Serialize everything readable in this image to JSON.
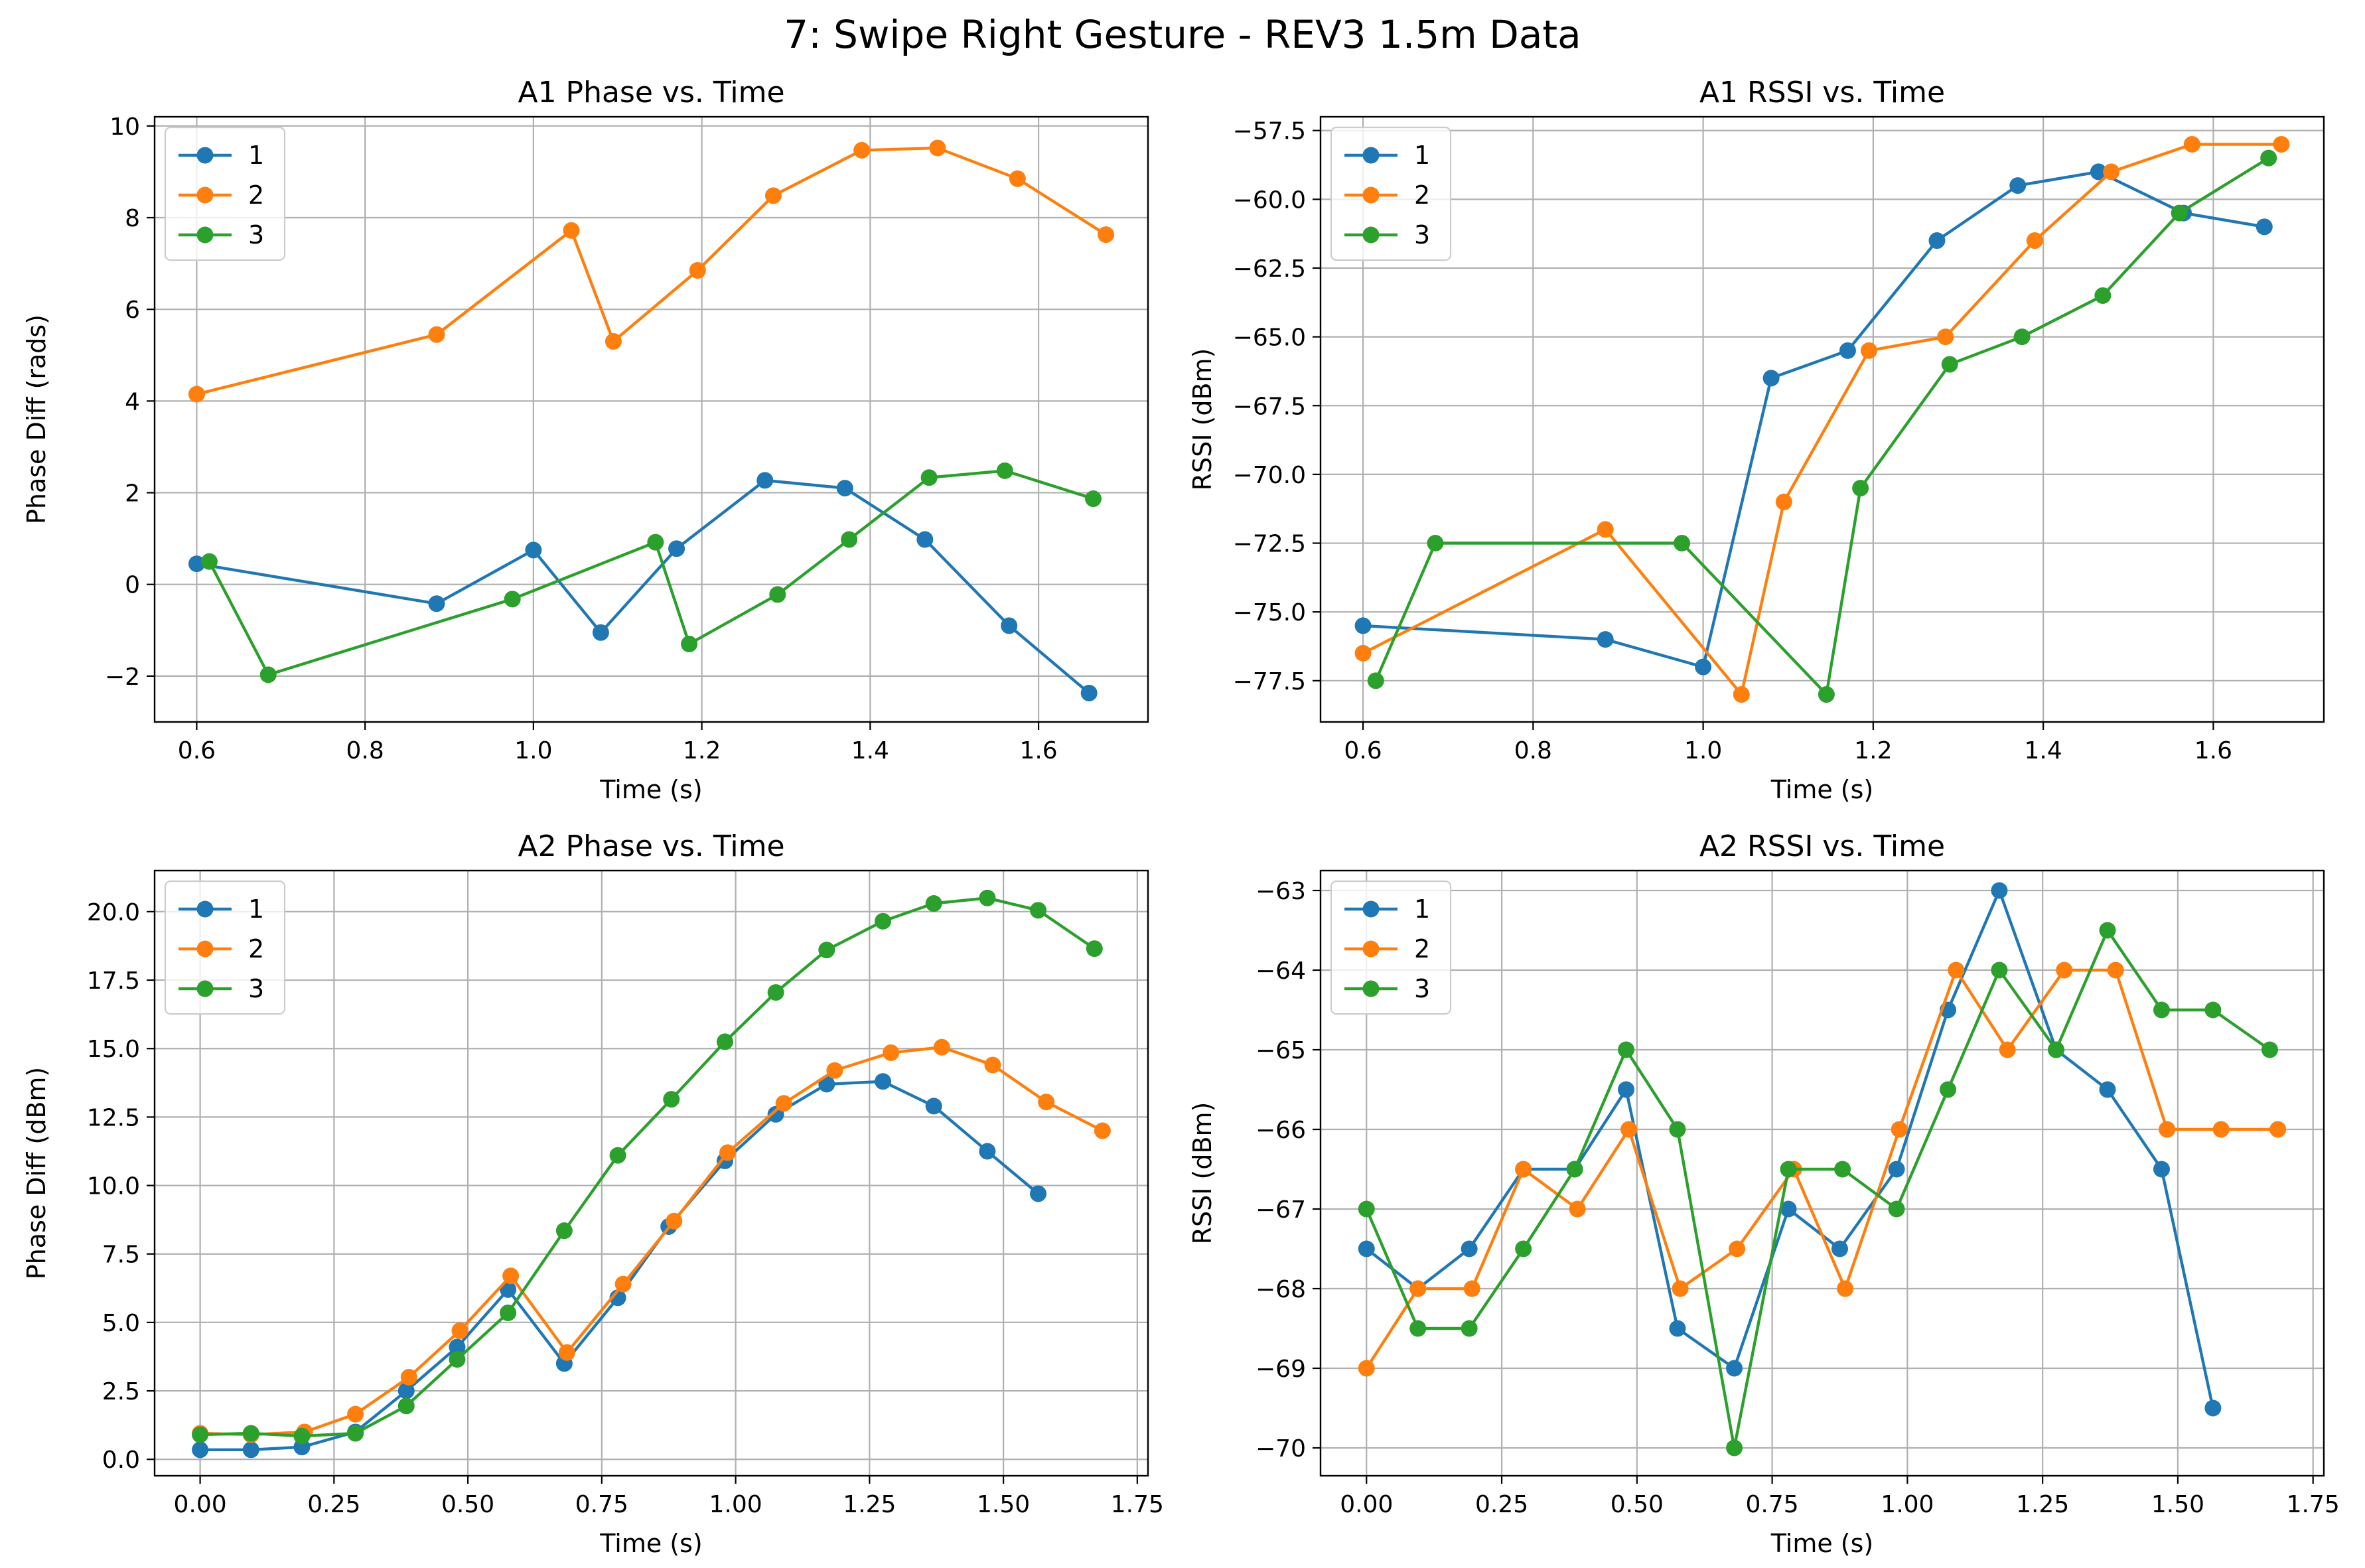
{
  "figure": {
    "title": "7: Swipe Right Gesture - REV3 1.5m Data"
  },
  "colors": {
    "1": "#1f77b4",
    "2": "#ff7f0e",
    "3": "#2ca02c"
  },
  "chart_data": [
    {
      "type": "line",
      "title": "A1 Phase vs. Time",
      "xlabel": "Time (s)",
      "ylabel": "Phase Diff (rads)",
      "xlim": [
        0.55,
        1.73
      ],
      "ylim": [
        -3.0,
        10.2
      ],
      "xticks": [
        0.6,
        0.8,
        1.0,
        1.2,
        1.4,
        1.6
      ],
      "xtick_labels": [
        "0.6",
        "0.8",
        "1.0",
        "1.2",
        "1.4",
        "1.6"
      ],
      "yticks": [
        -2,
        0,
        2,
        4,
        6,
        8,
        10
      ],
      "ytick_labels": [
        "−2",
        "0",
        "2",
        "4",
        "6",
        "8",
        "10"
      ],
      "grid": true,
      "legend": "top-left",
      "series": [
        {
          "name": "1",
          "x": [
            0.6,
            0.885,
            1.0,
            1.08,
            1.17,
            1.275,
            1.37,
            1.465,
            1.565,
            1.66
          ],
          "y": [
            0.45,
            -0.42,
            0.75,
            -1.05,
            0.78,
            2.27,
            2.1,
            0.98,
            -0.9,
            -2.37
          ]
        },
        {
          "name": "2",
          "x": [
            0.6,
            0.885,
            1.045,
            1.095,
            1.195,
            1.285,
            1.39,
            1.48,
            1.575,
            1.68
          ],
          "y": [
            4.15,
            5.45,
            7.72,
            5.3,
            6.85,
            8.48,
            9.47,
            9.52,
            8.85,
            7.63
          ]
        },
        {
          "name": "3",
          "x": [
            0.615,
            0.685,
            0.975,
            1.145,
            1.185,
            1.29,
            1.375,
            1.47,
            1.56,
            1.665
          ],
          "y": [
            0.5,
            -1.97,
            -0.32,
            0.92,
            -1.3,
            -0.22,
            0.98,
            2.33,
            2.48,
            1.87
          ]
        }
      ]
    },
    {
      "type": "line",
      "title": "A1 RSSI vs. Time",
      "xlabel": "Time (s)",
      "ylabel": "RSSI (dBm)",
      "xlim": [
        0.55,
        1.73
      ],
      "ylim": [
        -79.0,
        -57.0
      ],
      "xticks": [
        0.6,
        0.8,
        1.0,
        1.2,
        1.4,
        1.6
      ],
      "xtick_labels": [
        "0.6",
        "0.8",
        "1.0",
        "1.2",
        "1.4",
        "1.6"
      ],
      "yticks": [
        -77.5,
        -75.0,
        -72.5,
        -70.0,
        -67.5,
        -65.0,
        -62.5,
        -60.0,
        -57.5
      ],
      "ytick_labels": [
        "−77.5",
        "−75.0",
        "−72.5",
        "−70.0",
        "−67.5",
        "−65.0",
        "−62.5",
        "−60.0",
        "−57.5"
      ],
      "grid": true,
      "legend": "top-left",
      "series": [
        {
          "name": "1",
          "x": [
            0.6,
            0.885,
            1.0,
            1.08,
            1.17,
            1.275,
            1.37,
            1.465,
            1.565,
            1.66
          ],
          "y": [
            -75.5,
            -76.0,
            -77.0,
            -66.5,
            -65.5,
            -61.5,
            -59.5,
            -59.0,
            -60.5,
            -61.0
          ]
        },
        {
          "name": "2",
          "x": [
            0.6,
            0.885,
            1.045,
            1.095,
            1.195,
            1.285,
            1.39,
            1.48,
            1.575,
            1.68
          ],
          "y": [
            -76.5,
            -72.0,
            -78.0,
            -71.0,
            -65.5,
            -65.0,
            -61.5,
            -59.0,
            -58.0,
            -58.0
          ]
        },
        {
          "name": "3",
          "x": [
            0.615,
            0.685,
            0.975,
            1.145,
            1.185,
            1.29,
            1.375,
            1.47,
            1.56,
            1.665
          ],
          "y": [
            -77.5,
            -72.5,
            -72.5,
            -78.0,
            -70.5,
            -66.0,
            -65.0,
            -63.5,
            -60.5,
            -58.5
          ]
        }
      ]
    },
    {
      "type": "line",
      "title": "A2 Phase vs. Time",
      "xlabel": "Time (s)",
      "ylabel": "Phase Diff (dBm)",
      "xlim": [
        -0.085,
        1.77
      ],
      "ylim": [
        -0.6,
        21.5
      ],
      "xticks": [
        0.0,
        0.25,
        0.5,
        0.75,
        1.0,
        1.25,
        1.5,
        1.75
      ],
      "xtick_labels": [
        "0.00",
        "0.25",
        "0.50",
        "0.75",
        "1.00",
        "1.25",
        "1.50",
        "1.75"
      ],
      "yticks": [
        0.0,
        2.5,
        5.0,
        7.5,
        10.0,
        12.5,
        15.0,
        17.5,
        20.0
      ],
      "ytick_labels": [
        "0.0",
        "2.5",
        "5.0",
        "7.5",
        "10.0",
        "12.5",
        "15.0",
        "17.5",
        "20.0"
      ],
      "grid": true,
      "legend": "top-left",
      "series": [
        {
          "name": "1",
          "x": [
            0.0,
            0.095,
            0.19,
            0.29,
            0.385,
            0.48,
            0.575,
            0.68,
            0.78,
            0.875,
            0.98,
            1.075,
            1.17,
            1.275,
            1.37,
            1.47,
            1.565
          ],
          "y": [
            0.35,
            0.35,
            0.45,
            1.0,
            2.5,
            4.1,
            6.2,
            3.5,
            5.9,
            8.5,
            10.9,
            12.6,
            13.7,
            13.8,
            12.9,
            11.25,
            9.7
          ]
        },
        {
          "name": "2",
          "x": [
            0.0,
            0.095,
            0.195,
            0.29,
            0.39,
            0.485,
            0.58,
            0.685,
            0.79,
            0.885,
            0.985,
            1.09,
            1.185,
            1.29,
            1.385,
            1.48,
            1.58,
            1.685
          ],
          "y": [
            0.95,
            0.9,
            1.0,
            1.65,
            3.0,
            4.7,
            6.7,
            3.9,
            6.4,
            8.7,
            11.2,
            13.0,
            14.2,
            14.85,
            15.05,
            14.4,
            13.05,
            12.0
          ]
        },
        {
          "name": "3",
          "x": [
            0.0,
            0.095,
            0.19,
            0.29,
            0.385,
            0.48,
            0.575,
            0.68,
            0.78,
            0.88,
            0.98,
            1.075,
            1.17,
            1.275,
            1.37,
            1.47,
            1.565,
            1.67
          ],
          "y": [
            0.9,
            0.95,
            0.85,
            0.95,
            1.95,
            3.65,
            5.35,
            8.35,
            11.1,
            13.15,
            15.25,
            17.05,
            18.6,
            19.65,
            20.3,
            20.5,
            20.05,
            18.65
          ]
        }
      ]
    },
    {
      "type": "line",
      "title": "A2 RSSI vs. Time",
      "xlabel": "Time (s)",
      "ylabel": "RSSI (dBm)",
      "xlim": [
        -0.085,
        1.77
      ],
      "ylim": [
        -70.35,
        -62.75
      ],
      "xticks": [
        0.0,
        0.25,
        0.5,
        0.75,
        1.0,
        1.25,
        1.5,
        1.75
      ],
      "xtick_labels": [
        "0.00",
        "0.25",
        "0.50",
        "0.75",
        "1.00",
        "1.25",
        "1.50",
        "1.75"
      ],
      "yticks": [
        -70,
        -69,
        -68,
        -67,
        -66,
        -65,
        -64,
        -63
      ],
      "ytick_labels": [
        "−70",
        "−69",
        "−68",
        "−67",
        "−66",
        "−65",
        "−64",
        "−63"
      ],
      "grid": true,
      "legend": "top-left",
      "series": [
        {
          "name": "1",
          "x": [
            0.0,
            0.095,
            0.19,
            0.29,
            0.385,
            0.48,
            0.575,
            0.68,
            0.78,
            0.875,
            0.98,
            1.075,
            1.17,
            1.275,
            1.37,
            1.47,
            1.565
          ],
          "y": [
            -67.5,
            -68.0,
            -67.5,
            -66.5,
            -66.5,
            -65.5,
            -68.5,
            -69.0,
            -67.0,
            -67.5,
            -66.5,
            -64.5,
            -63.0,
            -65.0,
            -65.5,
            -66.5,
            -69.5
          ]
        },
        {
          "name": "2",
          "x": [
            0.0,
            0.095,
            0.195,
            0.29,
            0.39,
            0.485,
            0.58,
            0.685,
            0.79,
            0.885,
            0.985,
            1.09,
            1.185,
            1.29,
            1.385,
            1.48,
            1.58,
            1.685
          ],
          "y": [
            -69.0,
            -68.0,
            -68.0,
            -66.5,
            -67.0,
            -66.0,
            -68.0,
            -67.5,
            -66.5,
            -68.0,
            -66.0,
            -64.0,
            -65.0,
            -64.0,
            -64.0,
            -66.0,
            -66.0,
            -66.0
          ]
        },
        {
          "name": "3",
          "x": [
            0.0,
            0.095,
            0.19,
            0.29,
            0.385,
            0.48,
            0.575,
            0.68,
            0.78,
            0.88,
            0.98,
            1.075,
            1.17,
            1.275,
            1.37,
            1.47,
            1.565,
            1.67
          ],
          "y": [
            -67.0,
            -68.5,
            -68.5,
            -67.5,
            -66.5,
            -65.0,
            -66.0,
            -70.0,
            -66.5,
            -66.5,
            -67.0,
            -65.5,
            -64.0,
            -65.0,
            -63.5,
            -64.5,
            -64.5,
            -65.0
          ]
        }
      ]
    }
  ]
}
